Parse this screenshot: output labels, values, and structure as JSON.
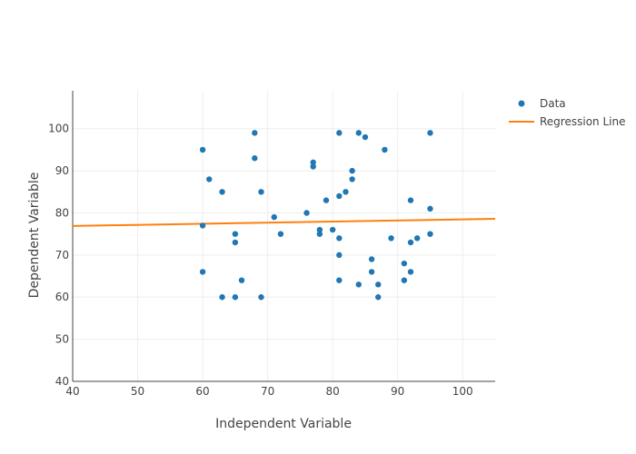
{
  "chart_data": {
    "type": "scatter",
    "xlabel": "Independent Variable",
    "ylabel": "Dependent Variable",
    "xlim": [
      40,
      105
    ],
    "ylim": [
      40,
      109
    ],
    "xticks": [
      40,
      50,
      60,
      70,
      80,
      90,
      100
    ],
    "yticks": [
      40,
      50,
      60,
      70,
      80,
      90,
      100
    ],
    "grid": true,
    "legend_position": "top-right",
    "series": [
      {
        "name": "Data",
        "type": "scatter",
        "color": "#1f77b4",
        "points": [
          [
            60,
            95
          ],
          [
            60,
            77
          ],
          [
            60,
            66
          ],
          [
            61,
            88
          ],
          [
            63,
            85
          ],
          [
            63,
            60
          ],
          [
            65,
            75
          ],
          [
            65,
            73
          ],
          [
            65,
            60
          ],
          [
            66,
            64
          ],
          [
            68,
            99
          ],
          [
            68,
            93
          ],
          [
            69,
            85
          ],
          [
            69,
            60
          ],
          [
            71,
            79
          ],
          [
            72,
            75
          ],
          [
            76,
            80
          ],
          [
            77,
            92
          ],
          [
            77,
            91
          ],
          [
            78,
            76
          ],
          [
            78,
            75
          ],
          [
            79,
            83
          ],
          [
            80,
            76
          ],
          [
            81,
            99
          ],
          [
            81,
            84
          ],
          [
            81,
            74
          ],
          [
            81,
            70
          ],
          [
            81,
            64
          ],
          [
            82,
            85
          ],
          [
            83,
            90
          ],
          [
            83,
            88
          ],
          [
            84,
            99
          ],
          [
            84,
            63
          ],
          [
            85,
            98
          ],
          [
            86,
            69
          ],
          [
            86,
            66
          ],
          [
            87,
            63
          ],
          [
            87,
            60
          ],
          [
            88,
            95
          ],
          [
            89,
            74
          ],
          [
            91,
            68
          ],
          [
            91,
            64
          ],
          [
            92,
            83
          ],
          [
            92,
            73
          ],
          [
            92,
            66
          ],
          [
            93,
            74
          ],
          [
            95,
            99
          ],
          [
            95,
            81
          ],
          [
            95,
            75
          ]
        ]
      },
      {
        "name": "Regression Line",
        "type": "line",
        "color": "#ff7f0e",
        "points": [
          [
            40,
            76.9
          ],
          [
            105,
            78.6
          ]
        ]
      }
    ]
  }
}
